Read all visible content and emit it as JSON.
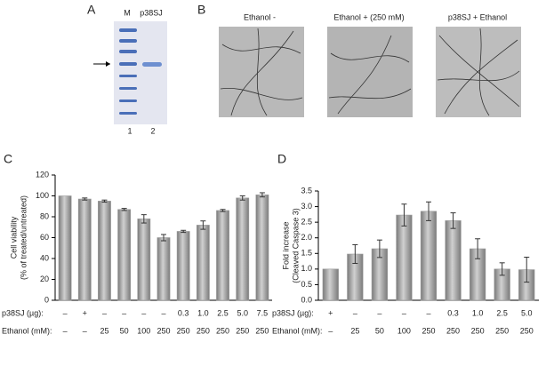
{
  "panels": {
    "A": {
      "letter": "A",
      "lanes_top": [
        "M",
        "p38SJ"
      ],
      "lanes_bottom": [
        "1",
        "2"
      ]
    },
    "B": {
      "letter": "B",
      "captions": [
        "Ethanol -",
        "Ethanol  + (250 mM)",
        "p38SJ + Ethanol"
      ]
    }
  },
  "chart_data": [
    {
      "type": "bar",
      "panel_label": "C",
      "ylabel": [
        "Cell viability",
        "(% of treated/untreated)"
      ],
      "ylim": [
        0,
        120
      ],
      "yticks": [
        0,
        20,
        40,
        60,
        80,
        100,
        120
      ],
      "values": [
        100,
        97,
        95,
        87,
        78,
        60,
        66,
        72,
        86,
        98,
        101
      ],
      "errors": [
        0,
        1,
        1,
        1,
        4,
        3,
        1,
        4,
        1,
        2,
        2
      ],
      "color": "#9c9c9c",
      "rows": [
        {
          "label": "p38SJ (µg):",
          "cells": [
            "–",
            "+",
            "–",
            "–",
            "–",
            "–",
            "0.3",
            "1.0",
            "2.5",
            "5.0",
            "7.5"
          ]
        },
        {
          "label": "Ethanol (mM):",
          "cells": [
            "–",
            "–",
            "25",
            "50",
            "100",
            "250",
            "250",
            "250",
            "250",
            "250",
            "250"
          ]
        }
      ]
    },
    {
      "type": "bar",
      "panel_label": "D",
      "ylabel": [
        "Fold increase",
        "(Cleaved Caspase 3)"
      ],
      "ylim": [
        0,
        3.5
      ],
      "yticks": [
        {
          "value": 0,
          "label": "0.0"
        },
        0.5,
        {
          "value": 1,
          "label": "1.0"
        },
        1.5,
        {
          "value": 2,
          "label": "2.0"
        },
        2.5,
        {
          "value": 3,
          "label": "3.0"
        },
        3.5
      ],
      "values": [
        1.0,
        1.48,
        1.65,
        2.73,
        2.85,
        2.55,
        1.65,
        1.0,
        0.98
      ],
      "errors": [
        0,
        0.3,
        0.28,
        0.35,
        0.3,
        0.25,
        0.32,
        0.2,
        0.4
      ],
      "color": "#9c9c9c",
      "rows": [
        {
          "label": "p38SJ (µg):",
          "cells": [
            "+",
            "–",
            "–",
            "–",
            "–",
            "0.3",
            "1.0",
            "2.5",
            "5.0"
          ]
        },
        {
          "label": "Ethanol (mM):",
          "cells": [
            "–",
            "25",
            "50",
            "100",
            "250",
            "250",
            "250",
            "250",
            "250"
          ]
        }
      ]
    }
  ]
}
